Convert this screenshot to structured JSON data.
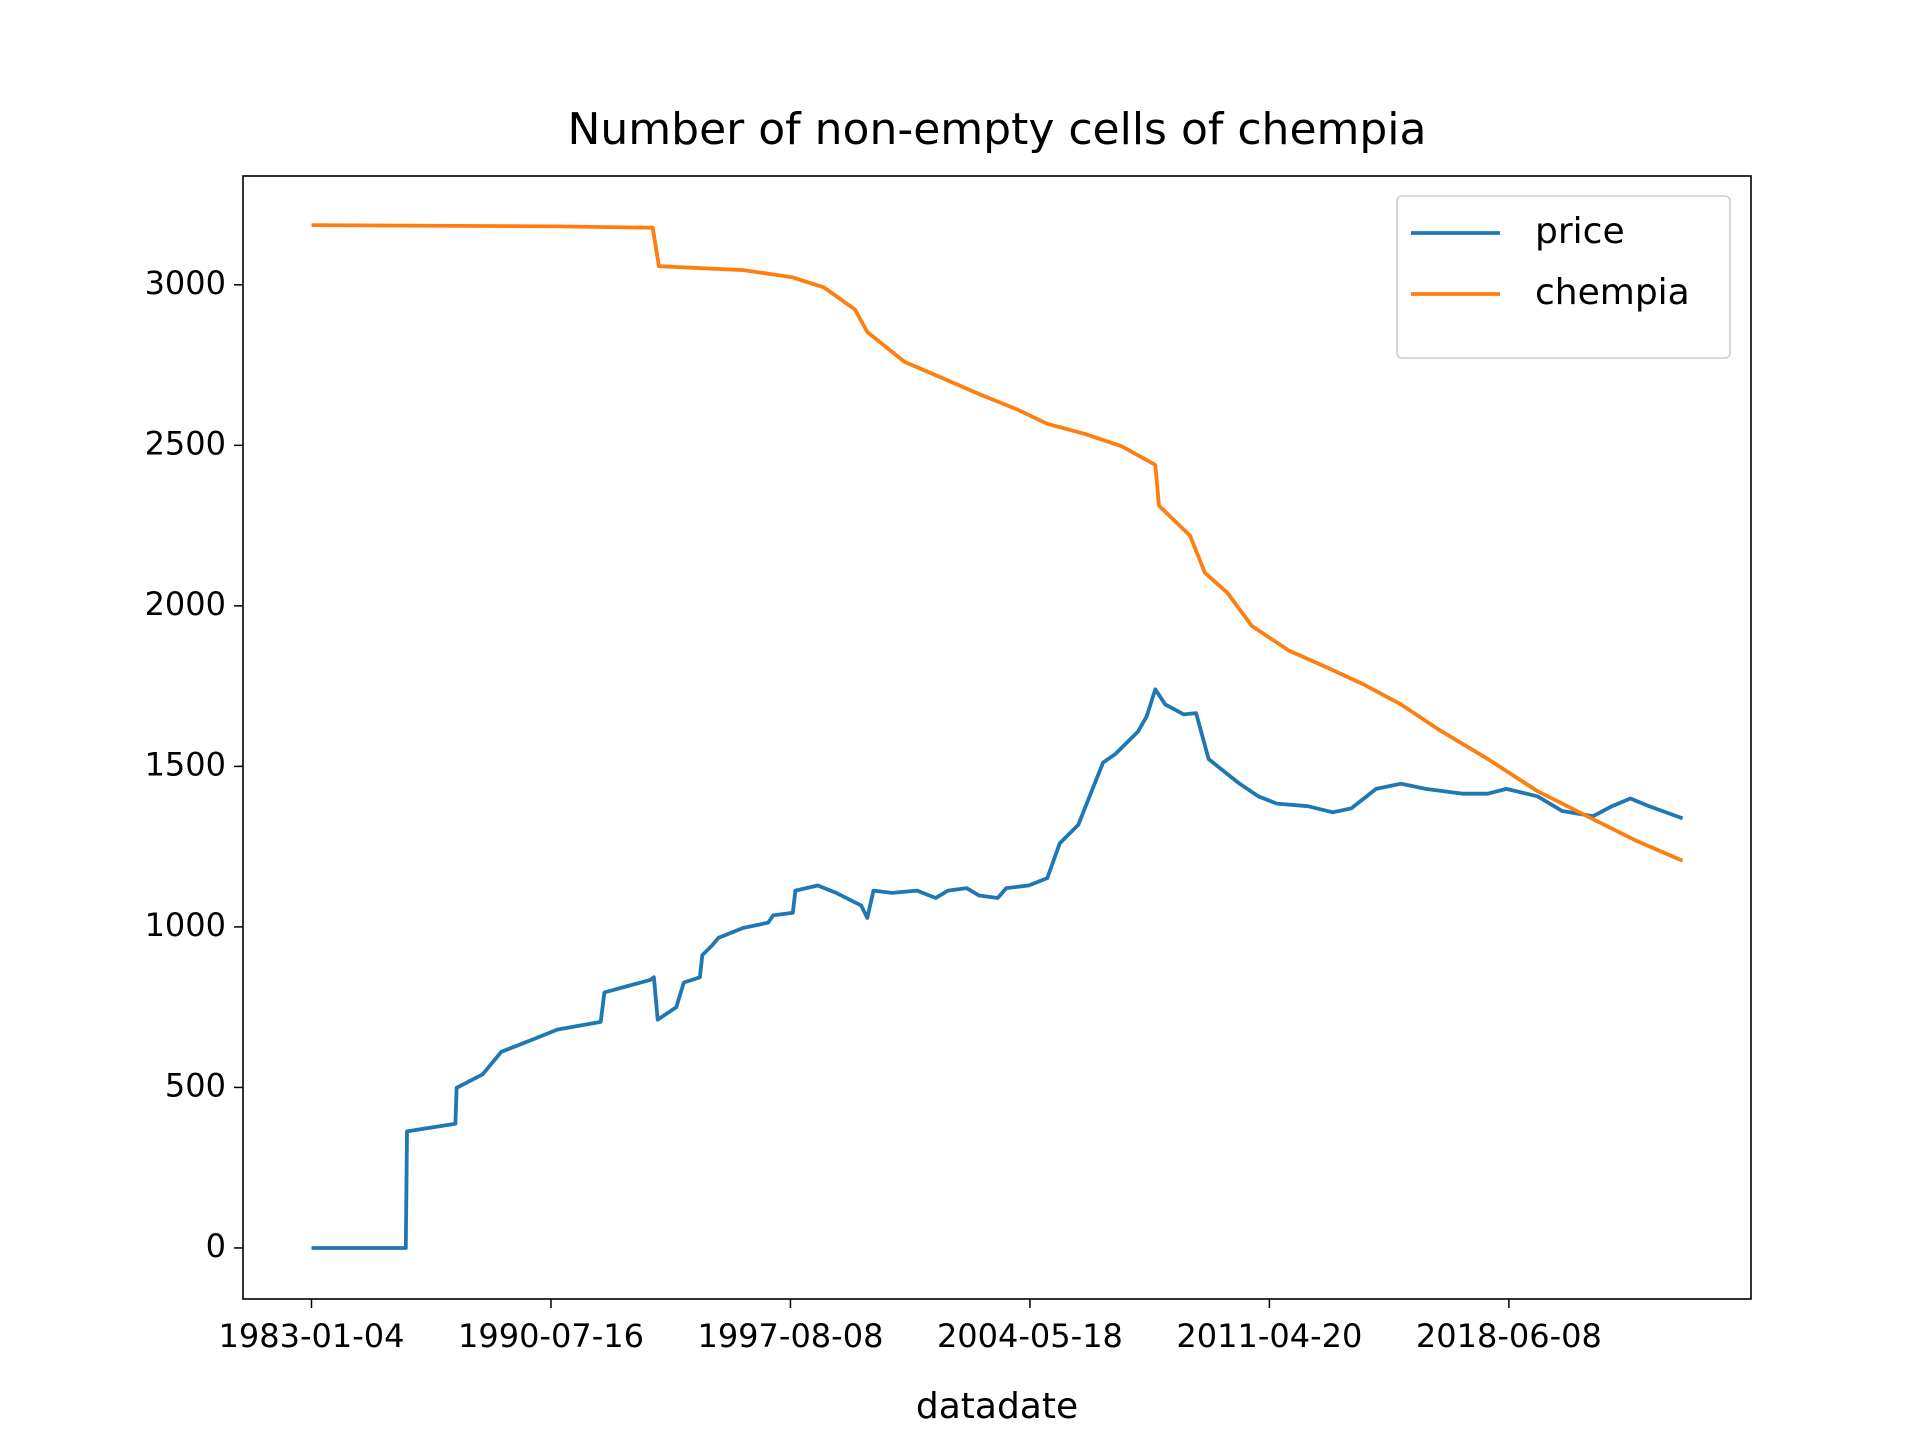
{
  "chart_data": {
    "type": "line",
    "title": "Number of non-empty cells of chempia",
    "x_label": "datadate",
    "xlim": [
      -572,
      12022
    ],
    "xticks": [
      {
        "value": 0,
        "label": "1983-01-04"
      },
      {
        "value": 2000,
        "label": "1990-07-16"
      },
      {
        "value": 4000,
        "label": "1997-08-08"
      },
      {
        "value": 6000,
        "label": "2004-05-18"
      },
      {
        "value": 8000,
        "label": "2011-04-20"
      },
      {
        "value": 10000,
        "label": "2018-06-08"
      }
    ],
    "ylim": [
      -159,
      3339
    ],
    "yticks": [
      0,
      500,
      1000,
      1500,
      2000,
      2500,
      3000
    ],
    "grid": false,
    "legend": "upper right",
    "series": [
      {
        "name": "price",
        "color": "#1f77b4",
        "x": [
          0,
          788,
          798,
          1202,
          1212,
          1430,
          1585,
          1845,
          2052,
          2415,
          2446,
          2829,
          2860,
          2891,
          3047,
          3109,
          3244,
          3264,
          3347,
          3399,
          3606,
          3813,
          3855,
          4020,
          4041,
          4228,
          4383,
          4590,
          4642,
          4694,
          4850,
          5057,
          5213,
          5316,
          5472,
          5575,
          5731,
          5803,
          5990,
          6145,
          6249,
          6404,
          6487,
          6611,
          6715,
          6902,
          6974,
          7047,
          7130,
          7285,
          7388,
          7492,
          7596,
          7751,
          7907,
          8062,
          8321,
          8529,
          8684,
          8891,
          9099,
          9306,
          9617,
          9824,
          9979,
          10238,
          10445,
          10704,
          10860,
          11015,
          11171,
          11451
        ],
        "values": [
          0,
          0,
          363,
          387,
          499,
          541,
          611,
          649,
          680,
          704,
          796,
          835,
          843,
          711,
          750,
          827,
          843,
          912,
          943,
          966,
          997,
          1013,
          1036,
          1044,
          1113,
          1129,
          1106,
          1067,
          1028,
          1113,
          1106,
          1113,
          1090,
          1113,
          1121,
          1098,
          1090,
          1121,
          1129,
          1152,
          1260,
          1318,
          1396,
          1512,
          1539,
          1608,
          1655,
          1740,
          1693,
          1662,
          1666,
          1523,
          1492,
          1446,
          1407,
          1384,
          1376,
          1357,
          1369,
          1430,
          1446,
          1430,
          1415,
          1415,
          1430,
          1407,
          1361,
          1345,
          1376,
          1400,
          1376,
          1338
        ]
      },
      {
        "name": "chempia",
        "color": "#ff7f0e",
        "x": [
          0,
          2052,
          2850,
          2901,
          3606,
          4020,
          4280,
          4539,
          4642,
          4953,
          5265,
          5575,
          5886,
          6145,
          6456,
          6767,
          7047,
          7078,
          7337,
          7461,
          7648,
          7855,
          8166,
          8477,
          8788,
          9099,
          9410,
          9824,
          10238,
          10653,
          11067,
          11451
        ],
        "values": [
          3186,
          3182,
          3178,
          3058,
          3046,
          3023,
          2992,
          2923,
          2853,
          2760,
          2710,
          2660,
          2613,
          2567,
          2536,
          2497,
          2439,
          2312,
          2219,
          2103,
          2041,
          1937,
          1860,
          1809,
          1755,
          1693,
          1616,
          1523,
          1423,
          1345,
          1268,
          1206
        ]
      }
    ]
  }
}
